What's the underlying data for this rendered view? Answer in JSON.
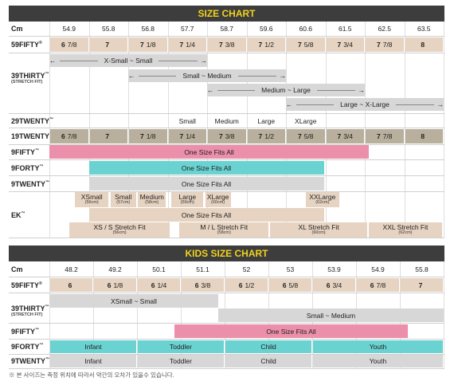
{
  "adult": {
    "title": "SIZE CHART",
    "cm_label": "Cm",
    "cm": [
      "54.9",
      "55.8",
      "56.8",
      "57.7",
      "58.7",
      "59.6",
      "60.6",
      "61.5",
      "62.5",
      "63.5"
    ],
    "labels": {
      "f59": "59FIFTY",
      "t39": "39THIRTY",
      "t39_sub": "(STRETCH FIT)",
      "t29": "29TWENTY",
      "t19": "19TWENTY",
      "f9": "9FIFTY",
      "fo9": "9FORTY",
      "tw9": "9TWENTY",
      "ek": "EK"
    },
    "marks": {
      "reg": "®",
      "tm": "™"
    },
    "row59": [
      {
        "w": "6",
        "f": "7/8"
      },
      {
        "w": "7",
        "f": ""
      },
      {
        "w": "7",
        "f": "1/8"
      },
      {
        "w": "7",
        "f": "1/4"
      },
      {
        "w": "7",
        "f": "3/8"
      },
      {
        "w": "7",
        "f": "1/2"
      },
      {
        "w": "7",
        "f": "5/8"
      },
      {
        "w": "7",
        "f": "3/4"
      },
      {
        "w": "7",
        "f": "7/8"
      },
      {
        "w": "8",
        "f": ""
      }
    ],
    "row19": [
      {
        "w": "6",
        "f": "7/8"
      },
      {
        "w": "7",
        "f": ""
      },
      {
        "w": "7",
        "f": "1/8"
      },
      {
        "w": "7",
        "f": "1/4"
      },
      {
        "w": "7",
        "f": "3/8"
      },
      {
        "w": "7",
        "f": "1/2"
      },
      {
        "w": "7",
        "f": "5/8"
      },
      {
        "w": "7",
        "f": "3/4"
      },
      {
        "w": "7",
        "f": "7/8"
      },
      {
        "w": "8",
        "f": ""
      }
    ],
    "s39": [
      "X-Small ~ Small",
      "Small ~ Medium",
      "Medium ~ Large",
      "Large ~ X-Large"
    ],
    "s29": [
      "Small",
      "Medium",
      "Large",
      "XLarge"
    ],
    "one_size": "One Size Fits All",
    "ek_sizes": [
      {
        "n": "XSmall",
        "c": "(56cm)"
      },
      {
        "n": "Small",
        "c": "(57cm)"
      },
      {
        "n": "Medium",
        "c": "(58cm)"
      },
      {
        "n": "Large",
        "c": "(59cm)"
      },
      {
        "n": "XLarge",
        "c": "(60cm)"
      },
      {
        "n": "XXLarge",
        "c": "(62cm)"
      }
    ],
    "ek_stretch": [
      {
        "n": "XS / S Stretch Fit",
        "c": "(56cm)"
      },
      {
        "n": "M / L Stretch Fit",
        "c": "(58cm)"
      },
      {
        "n": "XL Stretch Fit",
        "c": "(60cm)"
      },
      {
        "n": "XXL Stretch Fit",
        "c": "(62cm)"
      }
    ]
  },
  "kids": {
    "title": "KIDS SIZE CHART",
    "cm_label": "Cm",
    "cm": [
      "48.2",
      "49.2",
      "50.1",
      "51.1",
      "52",
      "53",
      "53.9",
      "54.9",
      "55.8"
    ],
    "labels": {
      "f59": "59FIFTY",
      "t39": "39THIRTY",
      "f9": "9FIFTY",
      "fo9": "9FORTY",
      "tw9": "9TWENTY"
    },
    "row59": [
      {
        "w": "6",
        "f": ""
      },
      {
        "w": "6",
        "f": "1/8"
      },
      {
        "w": "6",
        "f": "1/4"
      },
      {
        "w": "6",
        "f": "3/8"
      },
      {
        "w": "6",
        "f": "1/2"
      },
      {
        "w": "6",
        "f": "5/8"
      },
      {
        "w": "6",
        "f": "3/4"
      },
      {
        "w": "6",
        "f": "7/8"
      },
      {
        "w": "7",
        "f": ""
      }
    ],
    "s39": [
      "XSmall ~ Small",
      "Small ~ Medium"
    ],
    "one_size": "One Size Fits All",
    "groups": [
      "Infant",
      "Toddler",
      "Child",
      "Youth"
    ]
  },
  "colors": {
    "title_bg": "#3d3d3d",
    "title_fg": "#f1d21c",
    "tan": "#e6d3c1",
    "grey": "#d7d7d7",
    "stone": "#b8b09c",
    "pink": "#ec8fab",
    "teal": "#6ad3d1"
  },
  "note": "※ 본 사이즈는 측정 위치에 따라서 약간의 오차가 있을수 있습니다."
}
